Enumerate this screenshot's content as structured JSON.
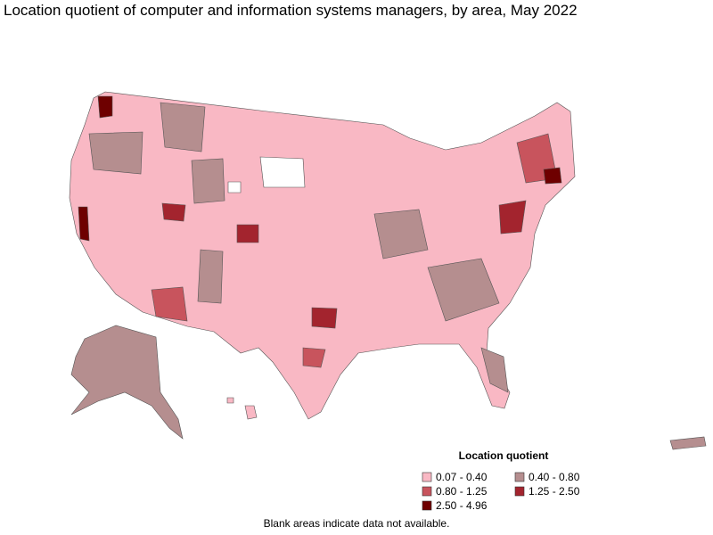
{
  "title": "Location quotient of computer and information systems managers, by area, May 2022",
  "legend": {
    "title": "Location quotient",
    "items": [
      {
        "label": "0.07 - 0.40",
        "color": "#f9b8c4"
      },
      {
        "label": "0.40 - 0.80",
        "color": "#b58e8f"
      },
      {
        "label": "0.80 - 1.25",
        "color": "#c8545d"
      },
      {
        "label": "1.25 - 2.50",
        "color": "#a3242e"
      },
      {
        "label": "2.50 - 4.96",
        "color": "#6e0000"
      }
    ]
  },
  "note": "Blank areas indicate data not available."
}
